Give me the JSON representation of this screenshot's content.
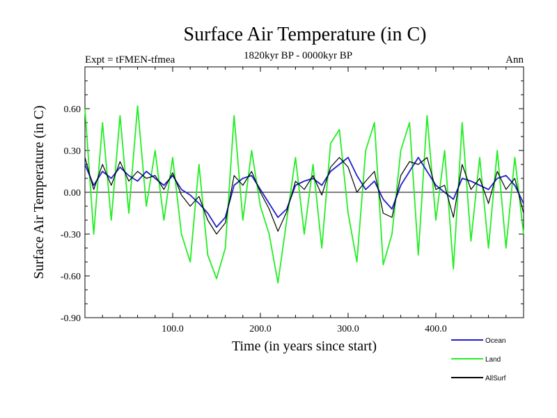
{
  "chart_data": {
    "type": "line",
    "title": "Surface Air Temperature (in C)",
    "subtitle_left": "Expt = tFMEN-tfmea",
    "subtitle_center": "1820kyr BP - 0000kyr BP",
    "subtitle_right": "Ann",
    "xlabel": "Time (in years since start)",
    "ylabel": "Surface Air Temperature (in C)",
    "xlim": [
      0,
      500
    ],
    "ylim": [
      -0.9,
      0.9
    ],
    "x_ticks": [
      100,
      200,
      300,
      400
    ],
    "x_tick_labels": [
      "100.0",
      "200.0",
      "300.0",
      "400.0"
    ],
    "y_ticks": [
      -0.9,
      -0.6,
      -0.3,
      0.0,
      0.3,
      0.6
    ],
    "y_tick_labels": [
      "-0.90",
      "-0.60",
      "-0.30",
      "0.00",
      "0.30",
      "0.60"
    ],
    "zero_line": true,
    "series": [
      {
        "name": "Ocean",
        "color": "#1e1ecc",
        "x": [
          0,
          10,
          20,
          30,
          40,
          50,
          60,
          70,
          80,
          90,
          100,
          110,
          120,
          130,
          140,
          150,
          160,
          170,
          180,
          190,
          200,
          210,
          220,
          230,
          240,
          250,
          260,
          270,
          280,
          290,
          300,
          310,
          320,
          330,
          340,
          350,
          360,
          370,
          380,
          390,
          400,
          410,
          420,
          430,
          440,
          450,
          460,
          470,
          480,
          490,
          500
        ],
        "values": [
          0.2,
          0.05,
          0.15,
          0.1,
          0.18,
          0.12,
          0.08,
          0.15,
          0.1,
          0.05,
          0.12,
          0.02,
          -0.02,
          -0.08,
          -0.15,
          -0.25,
          -0.18,
          0.05,
          0.1,
          0.12,
          0.02,
          -0.08,
          -0.18,
          -0.12,
          0.05,
          0.08,
          0.1,
          0.05,
          0.15,
          0.2,
          0.25,
          0.12,
          0.02,
          0.08,
          -0.05,
          -0.12,
          0.05,
          0.15,
          0.25,
          0.15,
          0.05,
          0.0,
          -0.05,
          0.1,
          0.08,
          0.05,
          0.02,
          0.1,
          0.12,
          0.05,
          -0.08
        ]
      },
      {
        "name": "Land",
        "color": "#22ee22",
        "x": [
          0,
          10,
          20,
          30,
          40,
          50,
          60,
          70,
          80,
          90,
          100,
          110,
          120,
          130,
          140,
          150,
          160,
          170,
          180,
          190,
          200,
          210,
          220,
          230,
          240,
          250,
          260,
          270,
          280,
          290,
          300,
          310,
          320,
          330,
          340,
          350,
          360,
          370,
          380,
          390,
          400,
          410,
          420,
          430,
          440,
          450,
          460,
          470,
          480,
          490,
          500
        ],
        "values": [
          0.6,
          -0.3,
          0.5,
          -0.2,
          0.55,
          -0.15,
          0.62,
          -0.1,
          0.3,
          -0.2,
          0.25,
          -0.3,
          -0.5,
          0.2,
          -0.45,
          -0.62,
          -0.4,
          0.55,
          -0.2,
          0.3,
          -0.1,
          -0.3,
          -0.65,
          -0.2,
          0.25,
          -0.3,
          0.2,
          -0.4,
          0.35,
          0.45,
          -0.15,
          -0.5,
          0.3,
          0.5,
          -0.52,
          -0.3,
          0.3,
          0.5,
          -0.45,
          0.55,
          -0.2,
          0.3,
          -0.55,
          0.5,
          -0.35,
          0.25,
          -0.4,
          0.3,
          -0.4,
          0.25,
          -0.3
        ]
      },
      {
        "name": "AllSurf",
        "color": "#000000",
        "x": [
          0,
          10,
          20,
          30,
          40,
          50,
          60,
          70,
          80,
          90,
          100,
          110,
          120,
          130,
          140,
          150,
          160,
          170,
          180,
          190,
          200,
          210,
          220,
          230,
          240,
          250,
          260,
          270,
          280,
          290,
          300,
          310,
          320,
          330,
          340,
          350,
          360,
          370,
          380,
          390,
          400,
          410,
          420,
          430,
          440,
          450,
          460,
          470,
          480,
          490,
          500
        ],
        "values": [
          0.25,
          0.02,
          0.2,
          0.05,
          0.22,
          0.08,
          0.15,
          0.1,
          0.12,
          0.02,
          0.14,
          -0.02,
          -0.1,
          -0.03,
          -0.2,
          -0.3,
          -0.22,
          0.12,
          0.05,
          0.15,
          0.0,
          -0.12,
          -0.28,
          -0.14,
          0.08,
          0.02,
          0.12,
          -0.02,
          0.18,
          0.25,
          0.18,
          0.0,
          0.08,
          0.15,
          -0.15,
          -0.18,
          0.12,
          0.22,
          0.2,
          0.25,
          0.02,
          0.05,
          -0.18,
          0.2,
          0.02,
          0.1,
          -0.08,
          0.15,
          0.02,
          0.1,
          -0.15
        ]
      }
    ]
  }
}
